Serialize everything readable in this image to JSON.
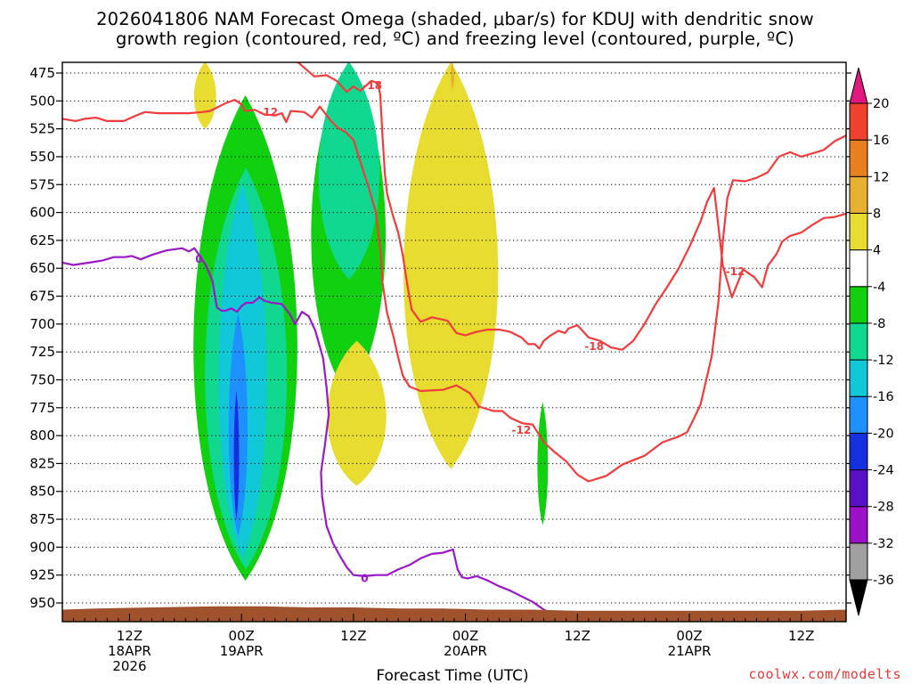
{
  "title_line1": "2026041806 NAM Forecast Omega (shaded, μbar/s) for KDUJ with dendritic snow",
  "title_line2": "growth region (contoured, red, ºC) and freezing level (contoured, purple, ºC)",
  "xlabel": "Forecast Time (UTC)",
  "source": "coolwx.com/modelts",
  "colors": {
    "dendritic_contour": "#f03c3c",
    "freezing_contour": "#9a18c8",
    "terrain": "#a0522d"
  },
  "chart_data": {
    "type": "heatmap",
    "title": "2026041806 NAM Forecast Omega (shaded, μbar/s) for KDUJ with dendritic snow growth region (contoured, red, ºC) and freezing level (contoured, purple, ºC)",
    "xlabel": "Forecast Time (UTC)",
    "ylabel": "",
    "y_axis": {
      "quantity": "pressure (mb)",
      "inverted": true,
      "ticks": [
        475,
        500,
        525,
        550,
        575,
        600,
        625,
        650,
        675,
        700,
        725,
        750,
        775,
        800,
        825,
        850,
        875,
        900,
        925,
        950
      ]
    },
    "x_axis": {
      "range_hours": [
        6,
        76
      ],
      "ticks": [
        {
          "hour": 12,
          "labels": [
            "12Z",
            "18APR",
            "2026"
          ]
        },
        {
          "hour": 22,
          "labels": [
            "00Z",
            "19APR"
          ]
        },
        {
          "hour": 32,
          "labels": [
            "12Z"
          ]
        },
        {
          "hour": 42,
          "labels": [
            "00Z",
            "20APR"
          ]
        },
        {
          "hour": 52,
          "labels": [
            "12Z"
          ]
        },
        {
          "hour": 62,
          "labels": [
            "00Z",
            "21APR"
          ]
        },
        {
          "hour": 72,
          "labels": [
            "12Z"
          ]
        }
      ]
    },
    "grid": true,
    "colorbar": {
      "levels": [
        -36,
        -32,
        -28,
        -24,
        -20,
        -16,
        -12,
        -8,
        -4,
        4,
        8,
        12,
        16,
        20
      ],
      "bins": [
        {
          "from": null,
          "to": -36,
          "color": "#000000"
        },
        {
          "from": -36,
          "to": -32,
          "color": "#a0a0a0"
        },
        {
          "from": -32,
          "to": -28,
          "color": "#9b10c8"
        },
        {
          "from": -28,
          "to": -24,
          "color": "#5a10c8"
        },
        {
          "from": -24,
          "to": -20,
          "color": "#1430e0"
        },
        {
          "from": -20,
          "to": -16,
          "color": "#1e90ff"
        },
        {
          "from": -16,
          "to": -12,
          "color": "#10c8d8"
        },
        {
          "from": -12,
          "to": -8,
          "color": "#10d890"
        },
        {
          "from": -8,
          "to": -4,
          "color": "#10d010"
        },
        {
          "from": -4,
          "to": 4,
          "color": "#ffffff"
        },
        {
          "from": 4,
          "to": 8,
          "color": "#e8dc30"
        },
        {
          "from": 8,
          "to": 12,
          "color": "#e8b030"
        },
        {
          "from": 12,
          "to": 16,
          "color": "#e88020"
        },
        {
          "from": 16,
          "to": 20,
          "color": "#f04030"
        },
        {
          "from": 20,
          "to": null,
          "color": "#e01880"
        }
      ]
    },
    "contour_labels": [
      {
        "text": "-18",
        "color": "red",
        "hour": 33.7,
        "pressure": 486
      },
      {
        "text": "-12",
        "color": "red",
        "hour": 24.4,
        "pressure": 510
      },
      {
        "text": "-18",
        "color": "red",
        "hour": 53.5,
        "pressure": 720
      },
      {
        "text": "-12",
        "color": "red",
        "hour": 47.0,
        "pressure": 795
      },
      {
        "text": "-12",
        "color": "red",
        "hour": 66.1,
        "pressure": 653
      },
      {
        "text": "0",
        "color": "purple",
        "hour": 18.2,
        "pressure": 642
      },
      {
        "text": "0",
        "color": "purple",
        "hour": 33.0,
        "pressure": 928
      }
    ],
    "series": [
      {
        "name": "-12",
        "color": "red",
        "points": [
          [
            6.0,
            516
          ],
          [
            7.2,
            518
          ],
          [
            8.0,
            516
          ],
          [
            9.0,
            515
          ],
          [
            10.0,
            518
          ],
          [
            11.5,
            518
          ],
          [
            12.6,
            513
          ],
          [
            13.4,
            510
          ],
          [
            14.6,
            511
          ],
          [
            16.0,
            511
          ],
          [
            17.3,
            511
          ],
          [
            18.5,
            510
          ],
          [
            19.2,
            509
          ],
          [
            20.6,
            502
          ],
          [
            21.4,
            499
          ],
          [
            22.0,
            503
          ],
          [
            22.3,
            509
          ],
          [
            23.2,
            508
          ],
          [
            24.0,
            512
          ],
          [
            25.0,
            513
          ],
          [
            25.6,
            511
          ],
          [
            26.0,
            519
          ],
          [
            26.4,
            509
          ],
          [
            27.6,
            510
          ],
          [
            28.3,
            515
          ],
          [
            29.0,
            505
          ],
          [
            30.0,
            518
          ],
          [
            30.6,
            524
          ],
          [
            31.3,
            528
          ],
          [
            32.0,
            535
          ],
          [
            32.6,
            554
          ],
          [
            33.4,
            579
          ],
          [
            34.0,
            600
          ],
          [
            34.4,
            634
          ],
          [
            34.6,
            663
          ],
          [
            35.0,
            690
          ],
          [
            35.6,
            712
          ],
          [
            36.0,
            730
          ],
          [
            36.4,
            746
          ],
          [
            37.0,
            756
          ],
          [
            38.0,
            760
          ],
          [
            40.0,
            759
          ],
          [
            41.2,
            755
          ],
          [
            42.4,
            762
          ],
          [
            43.2,
            774
          ],
          [
            44.5,
            778
          ],
          [
            45.3,
            778
          ],
          [
            46.0,
            784
          ],
          [
            47.1,
            789
          ],
          [
            48.0,
            790
          ],
          [
            49.0,
            806
          ],
          [
            50.0,
            815
          ],
          [
            51.0,
            823
          ],
          [
            52.0,
            835
          ],
          [
            53.0,
            841
          ],
          [
            54.6,
            836
          ],
          [
            56.0,
            826
          ],
          [
            58.0,
            818
          ],
          [
            59.6,
            806
          ],
          [
            61.0,
            801
          ],
          [
            61.8,
            797
          ],
          [
            62.4,
            785
          ],
          [
            63.0,
            772
          ],
          [
            64.0,
            729
          ],
          [
            64.6,
            680
          ],
          [
            65.0,
            625
          ],
          [
            65.4,
            587
          ],
          [
            65.9,
            571
          ],
          [
            67.0,
            572
          ],
          [
            68.0,
            569
          ],
          [
            69.0,
            564
          ],
          [
            70.0,
            550
          ],
          [
            71.0,
            546
          ],
          [
            72.0,
            550
          ],
          [
            73.0,
            547
          ],
          [
            74.0,
            544
          ],
          [
            75.0,
            536
          ],
          [
            76.0,
            531
          ]
        ]
      },
      {
        "name": "-18",
        "color": "red",
        "points": [
          [
            27.0,
            465
          ],
          [
            27.8,
            472
          ],
          [
            28.5,
            478
          ],
          [
            29.6,
            477
          ],
          [
            30.5,
            482
          ],
          [
            31.4,
            492
          ],
          [
            32.0,
            487
          ],
          [
            32.6,
            491
          ],
          [
            33.6,
            482
          ],
          [
            34.2,
            484
          ],
          [
            34.4,
            495
          ],
          [
            34.6,
            532
          ],
          [
            34.8,
            565
          ],
          [
            35.0,
            583
          ],
          [
            35.5,
            602
          ],
          [
            36.0,
            618
          ],
          [
            36.4,
            638
          ],
          [
            36.8,
            664
          ],
          [
            37.2,
            687
          ],
          [
            38.0,
            698
          ],
          [
            39.0,
            694
          ],
          [
            40.4,
            697
          ],
          [
            41.2,
            708
          ],
          [
            42.0,
            710
          ],
          [
            43.0,
            707
          ],
          [
            44.0,
            705
          ],
          [
            45.0,
            705
          ],
          [
            46.0,
            707
          ],
          [
            47.0,
            712
          ],
          [
            47.6,
            718
          ],
          [
            48.2,
            718
          ],
          [
            48.6,
            722
          ],
          [
            49.0,
            715
          ],
          [
            49.5,
            711
          ],
          [
            50.3,
            706
          ],
          [
            50.9,
            708
          ],
          [
            51.2,
            704
          ],
          [
            52.0,
            701
          ],
          [
            53.0,
            712
          ],
          [
            54.0,
            715
          ],
          [
            55.0,
            721
          ],
          [
            56.0,
            723
          ],
          [
            57.0,
            715
          ],
          [
            58.0,
            700
          ],
          [
            59.0,
            682
          ],
          [
            60.0,
            667
          ],
          [
            61.0,
            651
          ],
          [
            62.0,
            631
          ],
          [
            63.0,
            608
          ],
          [
            63.6,
            590
          ],
          [
            64.2,
            578
          ],
          [
            65.0,
            648
          ],
          [
            65.8,
            676
          ],
          [
            66.8,
            651
          ],
          [
            67.8,
            658
          ],
          [
            68.5,
            667
          ],
          [
            69.0,
            648
          ],
          [
            69.8,
            637
          ],
          [
            70.3,
            626
          ],
          [
            71.0,
            621
          ],
          [
            72.0,
            618
          ],
          [
            73.0,
            611
          ],
          [
            74.0,
            605
          ],
          [
            75.0,
            604
          ],
          [
            76.0,
            601
          ]
        ]
      },
      {
        "name": "0",
        "color": "purple",
        "points": [
          [
            6.0,
            645
          ],
          [
            7.0,
            647
          ],
          [
            8.4,
            645
          ],
          [
            9.6,
            643
          ],
          [
            10.6,
            640
          ],
          [
            11.6,
            640
          ],
          [
            12.2,
            639
          ],
          [
            13.0,
            642
          ],
          [
            14.0,
            638
          ],
          [
            15.3,
            634
          ],
          [
            16.7,
            632
          ],
          [
            17.3,
            635
          ],
          [
            17.8,
            632
          ],
          [
            18.4,
            641
          ],
          [
            18.8,
            647
          ],
          [
            19.4,
            661
          ],
          [
            19.8,
            685
          ],
          [
            20.2,
            688
          ],
          [
            20.6,
            688
          ],
          [
            21.1,
            686
          ],
          [
            21.6,
            689
          ],
          [
            22.0,
            684
          ],
          [
            22.4,
            681
          ],
          [
            23.0,
            681
          ],
          [
            23.6,
            676
          ],
          [
            24.0,
            679
          ],
          [
            24.7,
            681
          ],
          [
            25.6,
            682
          ],
          [
            26.3,
            691
          ],
          [
            26.8,
            700
          ],
          [
            27.4,
            689
          ],
          [
            28.0,
            693
          ],
          [
            28.6,
            706
          ],
          [
            29.3,
            731
          ],
          [
            29.6,
            757
          ],
          [
            29.8,
            781
          ],
          [
            29.4,
            812
          ],
          [
            29.1,
            833
          ],
          [
            29.2,
            855
          ],
          [
            29.6,
            881
          ],
          [
            30.2,
            897
          ],
          [
            30.8,
            908
          ],
          [
            31.4,
            918
          ],
          [
            32.0,
            925
          ],
          [
            33.0,
            926
          ],
          [
            34.0,
            925
          ],
          [
            35.0,
            925
          ],
          [
            36.0,
            920
          ],
          [
            37.0,
            916
          ],
          [
            38.0,
            910
          ],
          [
            39.0,
            906
          ],
          [
            40.0,
            905
          ],
          [
            40.9,
            902
          ],
          [
            41.3,
            920
          ],
          [
            41.7,
            927
          ],
          [
            42.2,
            928
          ],
          [
            43.0,
            926
          ],
          [
            44.0,
            930
          ],
          [
            45.0,
            935
          ],
          [
            46.0,
            939
          ],
          [
            47.0,
            944
          ],
          [
            48.0,
            949
          ],
          [
            49.0,
            956
          ],
          [
            50.0,
            962
          ],
          [
            50.5,
            965
          ]
        ]
      }
    ],
    "areas": [
      {
        "category": "-8 to -4",
        "approx_hour_range": [
          17.4,
          27.3
        ],
        "approx_pressure_range": [
          495,
          930
        ]
      },
      {
        "category": "-12 to -8",
        "approx_hour_range": [
          18.5,
          26.3
        ],
        "approx_pressure_range": [
          560,
          920
        ]
      },
      {
        "category": "-16 to -12",
        "approx_hour_range": [
          19.8,
          24.4
        ],
        "approx_pressure_range": [
          575,
          910
        ]
      },
      {
        "category": "-20 to -16",
        "approx_hour_range": [
          20.8,
          22.6
        ],
        "approx_pressure_range": [
          690,
          890
        ]
      },
      {
        "category": "-24 to -20",
        "approx_hour_range": [
          21.3,
          21.8
        ],
        "approx_pressure_range": [
          760,
          875
        ]
      },
      {
        "category": "-8 to -4",
        "approx_hour_range": [
          28.0,
          35.1
        ],
        "approx_pressure_range": [
          465,
          765
        ]
      },
      {
        "category": "-12 to -8",
        "approx_hour_range": [
          28.7,
          34.5
        ],
        "approx_pressure_range": [
          465,
          660
        ]
      },
      {
        "category": "-8 to -4",
        "approx_hour_range": [
          48.4,
          49.4
        ],
        "approx_pressure_range": [
          770,
          880
        ]
      },
      {
        "category": "4 to 8",
        "approx_hour_range": [
          17.7,
          19.8
        ],
        "approx_pressure_range": [
          465,
          525
        ]
      },
      {
        "category": "4 to 8",
        "approx_hour_range": [
          29.5,
          35.1
        ],
        "approx_pressure_range": [
          715,
          845
        ]
      },
      {
        "category": "4 to 8",
        "approx_hour_range": [
          36.2,
          45.2
        ],
        "approx_pressure_range": [
          465,
          830
        ]
      },
      {
        "category": "8 to 12",
        "approx_hour_range": [
          40.7,
          41.0
        ],
        "approx_pressure_range": [
          465,
          490
        ]
      }
    ]
  }
}
